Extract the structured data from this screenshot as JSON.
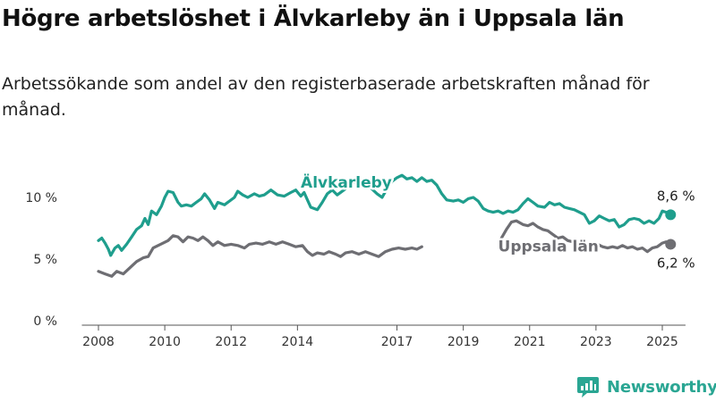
{
  "title": "Högre arbetslöshet i Älvkarleby än i Uppsala län",
  "subtitle": "Arbetssökande som andel av den registerbaserade arbetskraften månad för månad.",
  "brand": {
    "name": "Newsworthy",
    "color": "#2aa693"
  },
  "chart_data": {
    "type": "line",
    "title": "Högre arbetslöshet i Älvkarleby än i Uppsala län",
    "subtitle": "Arbetssökande som andel av den registerbaserade arbetskraften månad för månad.",
    "xlabel": "",
    "ylabel": "",
    "xlim": [
      2007.5,
      2025.7
    ],
    "ylim": [
      0,
      11
    ],
    "x_ticks": [
      2008,
      2010,
      2012,
      2014,
      2017,
      2019,
      2021,
      2023,
      2025
    ],
    "x_tick_labels": [
      "2008",
      "2010",
      "2012",
      "2014",
      "2017",
      "2019",
      "2021",
      "2023",
      "2025"
    ],
    "y_ticks": [
      0,
      5,
      10
    ],
    "y_tick_labels": [
      "0 %",
      "5 %",
      "10 %"
    ],
    "grid": false,
    "legend": "inline labels",
    "series": [
      {
        "name": "Älvkarleby",
        "color": "#1f9e8d",
        "end_label": "8,6 %",
        "points": [
          [
            2008.0,
            6.5
          ],
          [
            2008.1,
            6.7
          ],
          [
            2008.2,
            6.3
          ],
          [
            2008.3,
            5.8
          ],
          [
            2008.37,
            5.3
          ],
          [
            2008.5,
            5.9
          ],
          [
            2008.6,
            6.1
          ],
          [
            2008.7,
            5.7
          ],
          [
            2008.85,
            6.2
          ],
          [
            2009.0,
            6.8
          ],
          [
            2009.15,
            7.4
          ],
          [
            2009.3,
            7.7
          ],
          [
            2009.4,
            8.3
          ],
          [
            2009.5,
            7.8
          ],
          [
            2009.6,
            8.9
          ],
          [
            2009.75,
            8.6
          ],
          [
            2009.9,
            9.3
          ],
          [
            2010.0,
            10.0
          ],
          [
            2010.1,
            10.5
          ],
          [
            2010.25,
            10.4
          ],
          [
            2010.4,
            9.6
          ],
          [
            2010.5,
            9.3
          ],
          [
            2010.65,
            9.4
          ],
          [
            2010.8,
            9.3
          ],
          [
            2010.95,
            9.6
          ],
          [
            2011.1,
            9.9
          ],
          [
            2011.2,
            10.3
          ],
          [
            2011.35,
            9.8
          ],
          [
            2011.5,
            9.1
          ],
          [
            2011.6,
            9.6
          ],
          [
            2011.8,
            9.4
          ],
          [
            2011.95,
            9.7
          ],
          [
            2012.1,
            10.0
          ],
          [
            2012.2,
            10.5
          ],
          [
            2012.35,
            10.2
          ],
          [
            2012.5,
            10.0
          ],
          [
            2012.7,
            10.3
          ],
          [
            2012.85,
            10.1
          ],
          [
            2013.0,
            10.2
          ],
          [
            2013.2,
            10.6
          ],
          [
            2013.4,
            10.2
          ],
          [
            2013.6,
            10.1
          ],
          [
            2013.8,
            10.4
          ],
          [
            2013.95,
            10.6
          ],
          [
            2014.1,
            10.1
          ],
          [
            2014.2,
            10.4
          ],
          [
            2014.3,
            9.8
          ],
          [
            2014.4,
            9.2
          ],
          [
            2014.5,
            9.1
          ],
          [
            2014.6,
            9.0
          ],
          [
            2014.75,
            9.6
          ],
          [
            2014.9,
            10.3
          ],
          [
            2015.05,
            10.6
          ],
          [
            2015.2,
            10.2
          ],
          [
            2015.35,
            10.5
          ],
          [
            2015.55,
            10.9
          ],
          [
            2015.7,
            11.2
          ],
          [
            2015.9,
            11.3
          ],
          [
            2016.05,
            11.1
          ],
          [
            2016.2,
            10.8
          ],
          [
            2016.4,
            10.3
          ],
          [
            2016.55,
            10.0
          ],
          [
            2016.7,
            10.7
          ],
          [
            2016.85,
            11.3
          ],
          [
            2017.0,
            11.6
          ],
          [
            2017.15,
            11.8
          ],
          [
            2017.3,
            11.5
          ],
          [
            2017.45,
            11.6
          ],
          [
            2017.6,
            11.3
          ],
          [
            2017.75,
            11.6
          ],
          [
            2017.9,
            11.3
          ],
          [
            2018.05,
            11.4
          ],
          [
            2018.2,
            11.0
          ],
          [
            2018.35,
            10.3
          ],
          [
            2018.5,
            9.8
          ],
          [
            2018.7,
            9.7
          ],
          [
            2018.85,
            9.8
          ],
          [
            2019.0,
            9.6
          ],
          [
            2019.15,
            9.9
          ],
          [
            2019.3,
            10.0
          ],
          [
            2019.45,
            9.7
          ],
          [
            2019.6,
            9.1
          ],
          [
            2019.75,
            8.9
          ],
          [
            2019.9,
            8.8
          ],
          [
            2020.05,
            8.9
          ],
          [
            2020.2,
            8.7
          ],
          [
            2020.35,
            8.9
          ],
          [
            2020.5,
            8.8
          ],
          [
            2020.65,
            9.0
          ],
          [
            2020.8,
            9.5
          ],
          [
            2020.95,
            9.9
          ],
          [
            2021.1,
            9.6
          ],
          [
            2021.25,
            9.3
          ],
          [
            2021.45,
            9.2
          ],
          [
            2021.6,
            9.6
          ],
          [
            2021.75,
            9.4
          ],
          [
            2021.9,
            9.5
          ],
          [
            2022.05,
            9.2
          ],
          [
            2022.2,
            9.1
          ],
          [
            2022.35,
            9.0
          ],
          [
            2022.5,
            8.8
          ],
          [
            2022.65,
            8.6
          ],
          [
            2022.8,
            7.9
          ],
          [
            2022.95,
            8.1
          ],
          [
            2023.1,
            8.5
          ],
          [
            2023.25,
            8.3
          ],
          [
            2023.4,
            8.1
          ],
          [
            2023.55,
            8.2
          ],
          [
            2023.7,
            7.6
          ],
          [
            2023.85,
            7.8
          ],
          [
            2024.0,
            8.2
          ],
          [
            2024.15,
            8.3
          ],
          [
            2024.3,
            8.2
          ],
          [
            2024.45,
            7.9
          ],
          [
            2024.6,
            8.1
          ],
          [
            2024.75,
            7.9
          ],
          [
            2024.9,
            8.3
          ],
          [
            2025.0,
            8.9
          ],
          [
            2025.12,
            8.8
          ],
          [
            2025.25,
            8.6
          ]
        ]
      },
      {
        "name": "Uppsala län",
        "color": "#6e6e73",
        "end_label": "6,2 %",
        "points": [
          [
            2008.0,
            4.0
          ],
          [
            2008.2,
            3.8
          ],
          [
            2008.4,
            3.6
          ],
          [
            2008.55,
            4.0
          ],
          [
            2008.75,
            3.8
          ],
          [
            2008.95,
            4.3
          ],
          [
            2009.15,
            4.8
          ],
          [
            2009.35,
            5.1
          ],
          [
            2009.5,
            5.2
          ],
          [
            2009.65,
            5.9
          ],
          [
            2009.8,
            6.1
          ],
          [
            2009.95,
            6.3
          ],
          [
            2010.1,
            6.5
          ],
          [
            2010.25,
            6.9
          ],
          [
            2010.4,
            6.8
          ],
          [
            2010.55,
            6.4
          ],
          [
            2010.7,
            6.8
          ],
          [
            2010.85,
            6.7
          ],
          [
            2011.0,
            6.5
          ],
          [
            2011.15,
            6.8
          ],
          [
            2011.3,
            6.5
          ],
          [
            2011.45,
            6.1
          ],
          [
            2011.6,
            6.4
          ],
          [
            2011.8,
            6.1
          ],
          [
            2012.0,
            6.2
          ],
          [
            2012.2,
            6.1
          ],
          [
            2012.4,
            5.9
          ],
          [
            2012.55,
            6.2
          ],
          [
            2012.75,
            6.3
          ],
          [
            2012.95,
            6.2
          ],
          [
            2013.15,
            6.4
          ],
          [
            2013.35,
            6.2
          ],
          [
            2013.55,
            6.4
          ],
          [
            2013.75,
            6.2
          ],
          [
            2013.95,
            6.0
          ],
          [
            2014.15,
            6.1
          ],
          [
            2014.3,
            5.6
          ],
          [
            2014.45,
            5.3
          ],
          [
            2014.6,
            5.5
          ],
          [
            2014.8,
            5.4
          ],
          [
            2014.95,
            5.6
          ],
          [
            2015.15,
            5.4
          ],
          [
            2015.3,
            5.2
          ],
          [
            2015.45,
            5.5
          ],
          [
            2015.65,
            5.6
          ],
          [
            2015.85,
            5.4
          ],
          [
            2016.05,
            5.6
          ],
          [
            2016.25,
            5.4
          ],
          [
            2016.45,
            5.2
          ],
          [
            2016.65,
            5.6
          ],
          [
            2016.85,
            5.8
          ],
          [
            2017.05,
            5.9
          ],
          [
            2017.25,
            5.8
          ],
          [
            2017.45,
            5.9
          ],
          [
            2017.6,
            5.8
          ],
          [
            2017.75,
            6.0
          ],
          null,
          [
            2020.15,
            6.7
          ],
          [
            2020.3,
            7.4
          ],
          [
            2020.45,
            8.0
          ],
          [
            2020.6,
            8.1
          ],
          [
            2020.8,
            7.8
          ],
          [
            2020.95,
            7.7
          ],
          [
            2021.1,
            7.9
          ],
          [
            2021.25,
            7.6
          ],
          [
            2021.4,
            7.4
          ],
          [
            2021.55,
            7.3
          ],
          [
            2021.7,
            7.0
          ],
          [
            2021.85,
            6.7
          ],
          [
            2022.0,
            6.8
          ],
          [
            2022.15,
            6.5
          ],
          [
            2022.3,
            6.4
          ],
          [
            2022.45,
            6.3
          ],
          [
            2022.6,
            6.2
          ],
          [
            2022.75,
            6.0
          ],
          [
            2022.9,
            6.1
          ],
          [
            2023.05,
            6.2
          ],
          [
            2023.2,
            6.0
          ],
          [
            2023.35,
            5.9
          ],
          [
            2023.5,
            6.0
          ],
          [
            2023.65,
            5.9
          ],
          [
            2023.8,
            6.1
          ],
          [
            2023.95,
            5.9
          ],
          [
            2024.1,
            6.0
          ],
          [
            2024.25,
            5.8
          ],
          [
            2024.4,
            5.9
          ],
          [
            2024.55,
            5.6
          ],
          [
            2024.7,
            5.9
          ],
          [
            2024.85,
            6.0
          ],
          [
            2025.0,
            6.3
          ],
          [
            2025.12,
            6.4
          ],
          [
            2025.25,
            6.2
          ]
        ]
      }
    ],
    "series_labels": [
      {
        "text": "Älvkarleby",
        "x": 2014.1,
        "y": 10.8
      },
      {
        "text": "Uppsala län",
        "x": 2020.05,
        "y": 5.6
      }
    ]
  }
}
